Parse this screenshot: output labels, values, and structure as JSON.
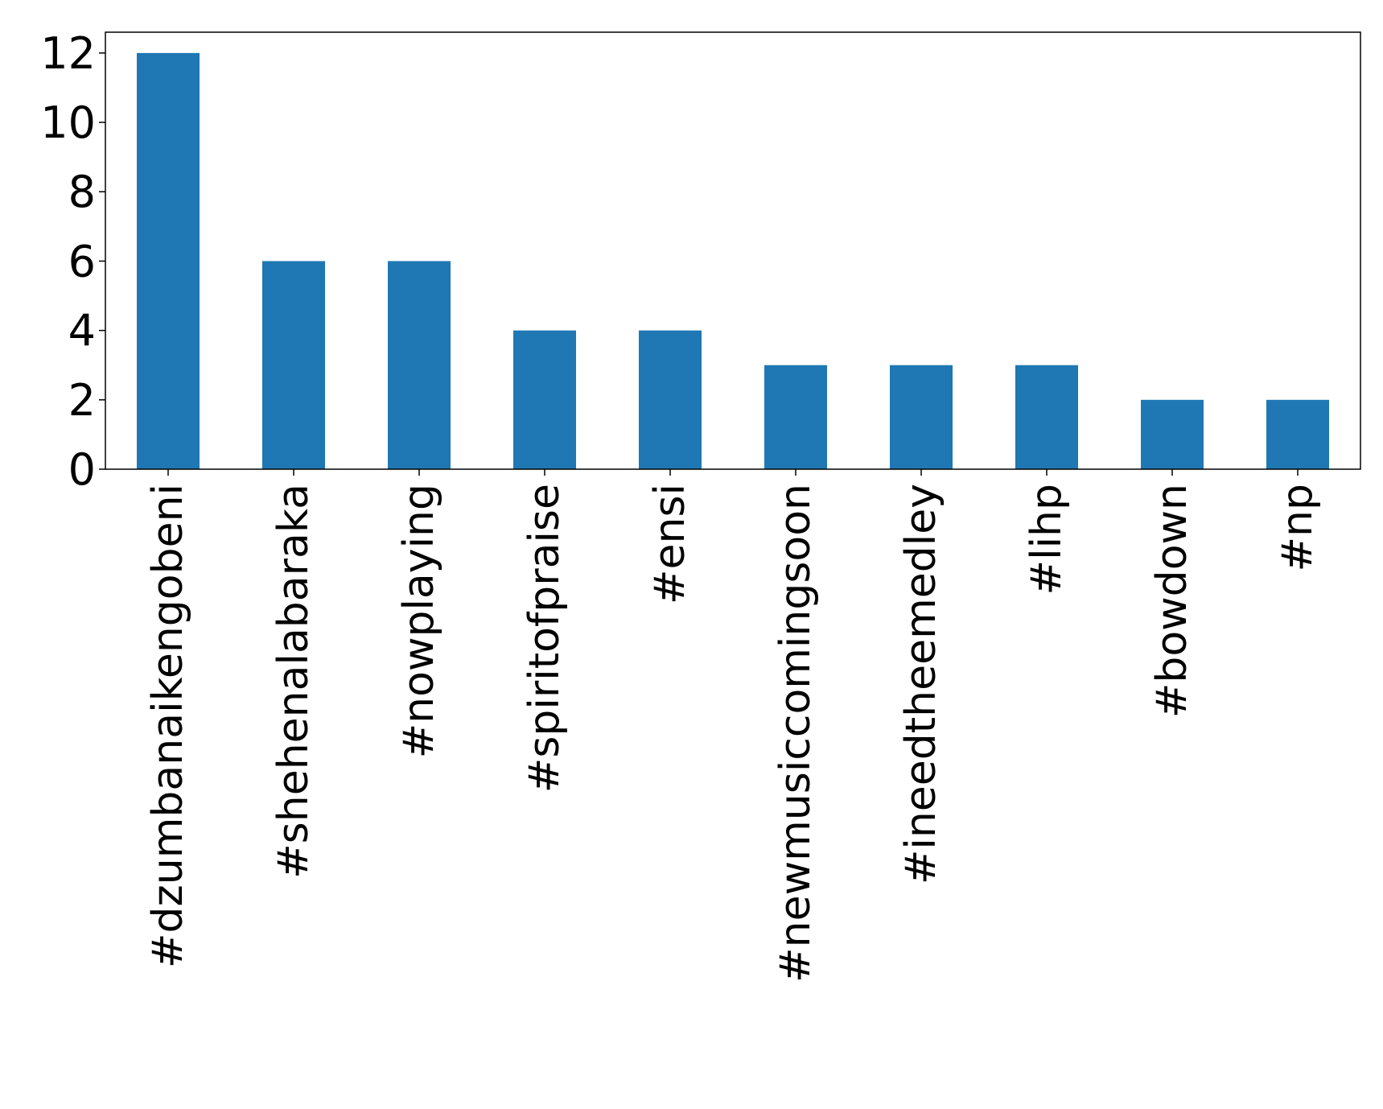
{
  "chart_data": {
    "type": "bar",
    "title": "",
    "xlabel": "",
    "ylabel": "",
    "categories": [
      "#dzumbanaikengobeni",
      "#shehenalabaraka",
      "#nowplaying",
      "#spiritofpraise",
      "#ensi",
      "#newmusiccomingsoon",
      "#ineedtheemedley",
      "#lihp",
      "#bowdown",
      "#np"
    ],
    "values": [
      12,
      6,
      6,
      4,
      4,
      3,
      3,
      3,
      2,
      2
    ],
    "ylim": [
      0,
      12.6
    ],
    "yticks": [
      0,
      2,
      4,
      6,
      8,
      10,
      12
    ],
    "grid": false,
    "legend": "none",
    "colors": {
      "bar": "#1f77b4",
      "axis": "#000000",
      "background": "#ffffff"
    }
  }
}
